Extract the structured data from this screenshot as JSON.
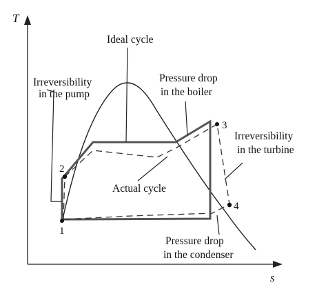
{
  "axes": {
    "y_label": "T",
    "x_label": "s"
  },
  "labels": {
    "ideal_cycle": "Ideal cycle",
    "actual_cycle": "Actual cycle",
    "irrev_pump_1": "Irreversibility",
    "irrev_pump_2": "in the pump",
    "boiler_drop_1": "Pressure drop",
    "boiler_drop_2": "in the boiler",
    "irrev_turbine_1": "Irreversibility",
    "irrev_turbine_2": "in the turbine",
    "condenser_drop_1": "Pressure drop",
    "condenser_drop_2": "in the condenser"
  },
  "states": {
    "p1": "1",
    "p2": "2",
    "p3": "3",
    "p4": "4"
  }
}
